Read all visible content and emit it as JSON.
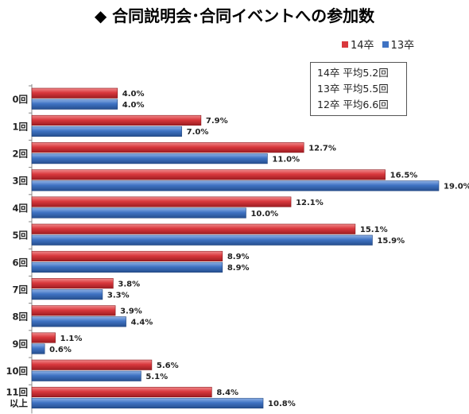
{
  "title": "◆ 合同説明会･合同イベントへの参加数",
  "legend": [
    {
      "name": "14卒",
      "color": "#d9383d"
    },
    {
      "name": "13卒",
      "color": "#3f73c3"
    }
  ],
  "averages": [
    "14卒 平均5.2回",
    "13卒 平均5.5回",
    "12卒 平均6.6回"
  ],
  "chart_data": {
    "type": "bar",
    "orientation": "horizontal",
    "categories": [
      "0回",
      "1回",
      "2回",
      "3回",
      "4回",
      "5回",
      "6回",
      "7回",
      "8回",
      "9回",
      "10回",
      "11回\n以上"
    ],
    "series": [
      {
        "name": "14卒",
        "color": "#d9383d",
        "values": [
          4.0,
          7.9,
          12.7,
          16.5,
          12.1,
          15.1,
          8.9,
          3.8,
          3.9,
          1.1,
          5.6,
          8.4
        ],
        "labels": [
          "4.0%",
          "7.9%",
          "12.7%",
          "16.5%",
          "12.1%",
          "15.1%",
          "8.9%",
          "3.8%",
          "3.9%",
          "1.1%",
          "5.6%",
          "8.4%"
        ]
      },
      {
        "name": "13卒",
        "color": "#3f73c3",
        "values": [
          4.0,
          7.0,
          11.0,
          19.0,
          10.0,
          15.9,
          8.9,
          3.3,
          4.4,
          0.6,
          5.1,
          10.8
        ],
        "labels": [
          "4.0%",
          "7.0%",
          "11.0%",
          "19.0%",
          "10.0%",
          "15.9%",
          "8.9%",
          "3.3%",
          "4.4%",
          "0.6%",
          "5.1%",
          "10.8%"
        ]
      }
    ],
    "xlim": [
      0,
      19.0
    ],
    "grid": false,
    "legend_position": "top-right"
  }
}
